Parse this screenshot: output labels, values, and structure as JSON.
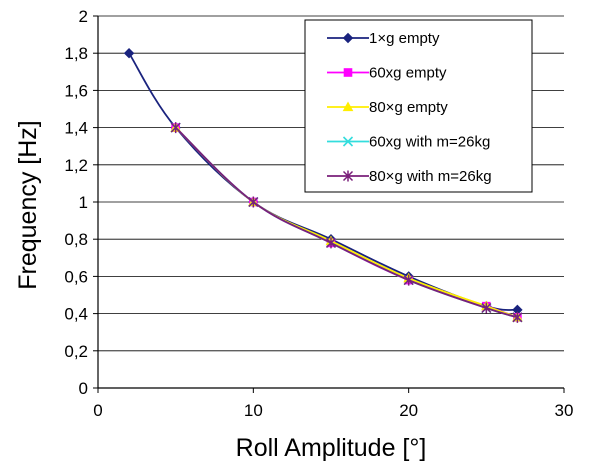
{
  "chart_data": {
    "type": "line",
    "title": "",
    "xlabel": "Roll Amplitude [°]",
    "ylabel": "Frequency [Hz]",
    "xlim": [
      0,
      30
    ],
    "ylim": [
      0,
      2
    ],
    "xticks": [
      0,
      10,
      20,
      30
    ],
    "yticks": [
      0,
      0.2,
      0.4,
      0.6,
      0.8,
      1,
      1.2,
      1.4,
      1.6,
      1.8,
      2
    ],
    "xtick_labels": [
      "0",
      "10",
      "20",
      "30"
    ],
    "ytick_labels": [
      "0",
      "0,2",
      "0,4",
      "0,6",
      "0,8",
      "1",
      "1,2",
      "1,4",
      "1,6",
      "1,8",
      "2"
    ],
    "grid": "horizontal",
    "legend_position": "top-right",
    "series": [
      {
        "name": "1×g empty",
        "color": "#1a237e",
        "marker": "diamond",
        "x": [
          2,
          5,
          10,
          15,
          20,
          25,
          27
        ],
        "y": [
          1.8,
          1.4,
          1.0,
          0.8,
          0.6,
          0.44,
          0.42
        ]
      },
      {
        "name": "60xg empty",
        "color": "#ff00ff",
        "marker": "square",
        "x": [
          5,
          10,
          15,
          20,
          25,
          27
        ],
        "y": [
          1.4,
          1.0,
          0.78,
          0.58,
          0.44,
          0.38
        ]
      },
      {
        "name": "80×g empty",
        "color": "#ffee00",
        "marker": "triangle",
        "x": [
          5,
          10,
          15,
          20,
          25,
          27
        ],
        "y": [
          1.4,
          1.0,
          0.79,
          0.59,
          0.44,
          0.38
        ]
      },
      {
        "name": "60xg with m=26kg",
        "color": "#33dddd",
        "marker": "x",
        "x": [
          5,
          10,
          15,
          20,
          25,
          27
        ],
        "y": [
          1.4,
          1.0,
          0.78,
          0.58,
          0.43,
          0.38
        ]
      },
      {
        "name": "80×g with m=26kg",
        "color": "#7a1f7a",
        "marker": "star",
        "x": [
          5,
          10,
          15,
          20,
          25,
          27
        ],
        "y": [
          1.4,
          1.0,
          0.78,
          0.58,
          0.43,
          0.38
        ]
      }
    ]
  }
}
